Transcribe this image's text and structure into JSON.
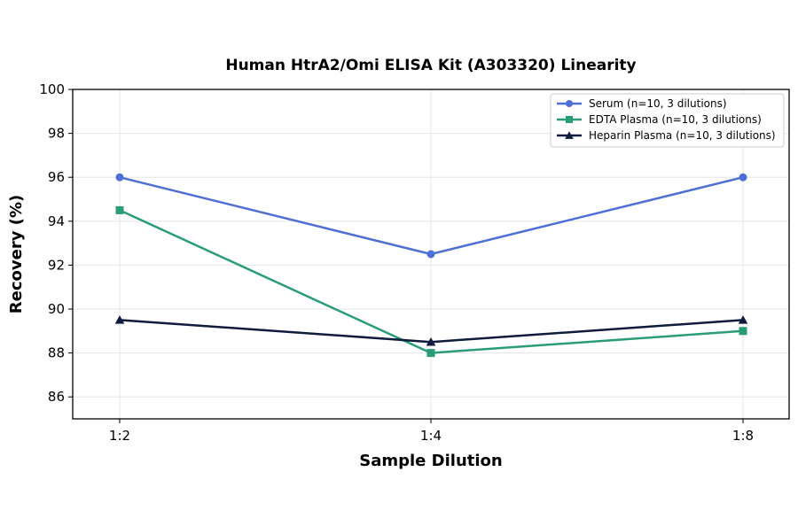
{
  "chart_data": {
    "type": "line",
    "title": "Human HtrA2/Omi ELISA Kit (A303320) Linearity",
    "xlabel": "Sample Dilution",
    "ylabel": "Recovery (%)",
    "categories": [
      "1:2",
      "1:4",
      "1:8"
    ],
    "ylim": [
      85,
      100
    ],
    "yticks": [
      86,
      88,
      90,
      92,
      94,
      96,
      98,
      100
    ],
    "grid": true,
    "legend_position": "top-right",
    "series": [
      {
        "name": "Serum (n=10, 3 dilutions)",
        "values": [
          96,
          92.5,
          96
        ],
        "color": "#4e6fd6",
        "marker": "circle"
      },
      {
        "name": "EDTA Plasma (n=10, 3 dilutions)",
        "values": [
          94.5,
          88,
          89
        ],
        "color": "#2a9d78",
        "marker": "square"
      },
      {
        "name": "Heparin Plasma (n=10, 3 dilutions)",
        "values": [
          89.5,
          88.5,
          89.5
        ],
        "color": "#0f1b3f",
        "marker": "triangle"
      }
    ]
  }
}
